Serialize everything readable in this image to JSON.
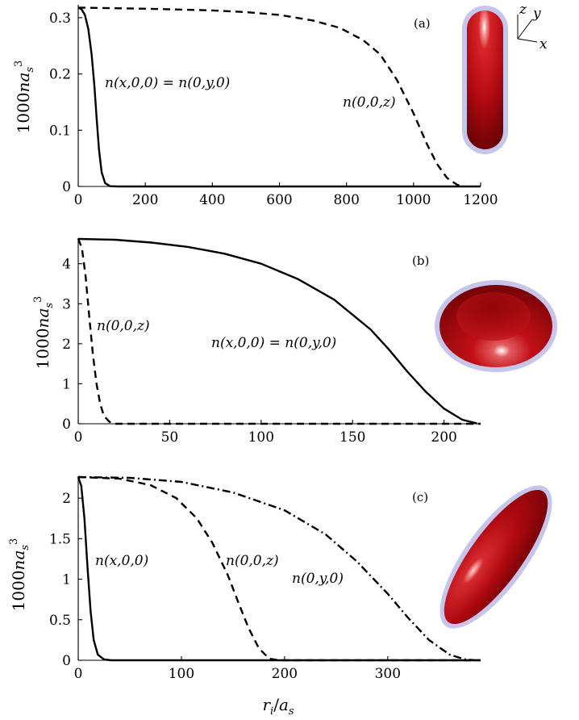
{
  "chart_data": [
    {
      "panel_label": "(a)",
      "type": "line",
      "ylabel": "1000na_s^3",
      "xlabel": "",
      "xlim": [
        0,
        1200
      ],
      "ylim": [
        0,
        0.32
      ],
      "xticks": [
        0,
        200,
        400,
        600,
        800,
        1000,
        1200
      ],
      "yticks": [
        0,
        0.1,
        0.2,
        0.3
      ],
      "series": [
        {
          "name": "n(x,0,0) = n(0,y,0)",
          "style": "solid",
          "points": [
            [
              0,
              0.318
            ],
            [
              10,
              0.315
            ],
            [
              20,
              0.305
            ],
            [
              30,
              0.28
            ],
            [
              40,
              0.235
            ],
            [
              48,
              0.18
            ],
            [
              55,
              0.12
            ],
            [
              62,
              0.065
            ],
            [
              70,
              0.025
            ],
            [
              80,
              0.006
            ],
            [
              95,
              0.0005
            ],
            [
              120,
              0
            ],
            [
              1200,
              0
            ]
          ]
        },
        {
          "name": "n(0,0,z)",
          "style": "dashed",
          "points": [
            [
              0,
              0.318
            ],
            [
              200,
              0.316
            ],
            [
              400,
              0.313
            ],
            [
              500,
              0.31
            ],
            [
              600,
              0.305
            ],
            [
              700,
              0.295
            ],
            [
              780,
              0.282
            ],
            [
              850,
              0.26
            ],
            [
              900,
              0.235
            ],
            [
              950,
              0.19
            ],
            [
              1000,
              0.13
            ],
            [
              1040,
              0.075
            ],
            [
              1070,
              0.04
            ],
            [
              1100,
              0.015
            ],
            [
              1130,
              0.003
            ],
            [
              1150,
              0
            ]
          ]
        }
      ],
      "annotations": [
        "n(x,0,0) = n(0,y,0)",
        "n(0,0,z)"
      ]
    },
    {
      "panel_label": "(b)",
      "type": "line",
      "ylabel": "1000na_s^3",
      "xlabel": "",
      "xlim": [
        0,
        220
      ],
      "ylim": [
        0,
        4.6
      ],
      "xticks": [
        0,
        50,
        100,
        150,
        200
      ],
      "yticks": [
        0,
        1,
        2,
        3,
        4
      ],
      "series": [
        {
          "name": "n(x,0,0) = n(0,y,0)",
          "style": "solid",
          "points": [
            [
              0,
              4.62
            ],
            [
              20,
              4.6
            ],
            [
              40,
              4.53
            ],
            [
              60,
              4.42
            ],
            [
              80,
              4.25
            ],
            [
              100,
              4.0
            ],
            [
              120,
              3.62
            ],
            [
              140,
              3.1
            ],
            [
              160,
              2.35
            ],
            [
              170,
              1.85
            ],
            [
              180,
              1.3
            ],
            [
              190,
              0.8
            ],
            [
              200,
              0.38
            ],
            [
              210,
              0.1
            ],
            [
              218,
              0.01
            ]
          ]
        },
        {
          "name": "n(0,0,z)",
          "style": "dashed",
          "points": [
            [
              0,
              4.62
            ],
            [
              2,
              4.4
            ],
            [
              4,
              3.7
            ],
            [
              6,
              2.7
            ],
            [
              8,
              1.75
            ],
            [
              10,
              1.0
            ],
            [
              12,
              0.5
            ],
            [
              14,
              0.2
            ],
            [
              17,
              0.05
            ],
            [
              20,
              0
            ],
            [
              220,
              0
            ]
          ]
        }
      ],
      "annotations": [
        "n(0,0,z)",
        "n(x,0,0) = n(0,y,0)"
      ]
    },
    {
      "panel_label": "(c)",
      "type": "line",
      "ylabel": "1000na_s^3",
      "xlabel": "r_i/a_s",
      "xlim": [
        0,
        390
      ],
      "ylim": [
        0,
        2.25
      ],
      "xticks": [
        0,
        100,
        200,
        300
      ],
      "yticks": [
        0,
        0.5,
        1,
        1.5,
        2
      ],
      "series": [
        {
          "name": "n(x,0,0)",
          "style": "solid",
          "points": [
            [
              0,
              2.26
            ],
            [
              3,
              2.15
            ],
            [
              6,
              1.75
            ],
            [
              9,
              1.15
            ],
            [
              12,
              0.6
            ],
            [
              15,
              0.25
            ],
            [
              19,
              0.07
            ],
            [
              25,
              0.01
            ],
            [
              32,
              0
            ],
            [
              390,
              0
            ]
          ]
        },
        {
          "name": "n(0,0,z)",
          "style": "dashed",
          "points": [
            [
              0,
              2.26
            ],
            [
              40,
              2.24
            ],
            [
              70,
              2.16
            ],
            [
              95,
              2.0
            ],
            [
              115,
              1.75
            ],
            [
              130,
              1.45
            ],
            [
              145,
              1.05
            ],
            [
              155,
              0.72
            ],
            [
              165,
              0.4
            ],
            [
              175,
              0.15
            ],
            [
              185,
              0.02
            ],
            [
              195,
              0
            ],
            [
              390,
              0
            ]
          ]
        },
        {
          "name": "n(0,y,0)",
          "style": "dashdot",
          "points": [
            [
              0,
              2.26
            ],
            [
              50,
              2.25
            ],
            [
              100,
              2.2
            ],
            [
              150,
              2.07
            ],
            [
              200,
              1.85
            ],
            [
              240,
              1.55
            ],
            [
              270,
              1.22
            ],
            [
              300,
              0.82
            ],
            [
              320,
              0.52
            ],
            [
              340,
              0.25
            ],
            [
              360,
              0.07
            ],
            [
              375,
              0.01
            ],
            [
              385,
              0
            ]
          ]
        }
      ],
      "annotations": [
        "n(x,0,0)",
        "n(0,0,z)",
        "n(0,y,0)"
      ]
    }
  ],
  "axes_triad": {
    "x": "x",
    "y": "y",
    "z": "z"
  },
  "colors": {
    "shape_fill": "#b40c12",
    "shape_halo": "#c6c6ec",
    "curve": "#000000"
  },
  "icons": [
    "cigar-condensate-shape",
    "pancake-condensate-shape",
    "tilted-ellipsoid-condensate-shape",
    "axes-triad-icon"
  ]
}
